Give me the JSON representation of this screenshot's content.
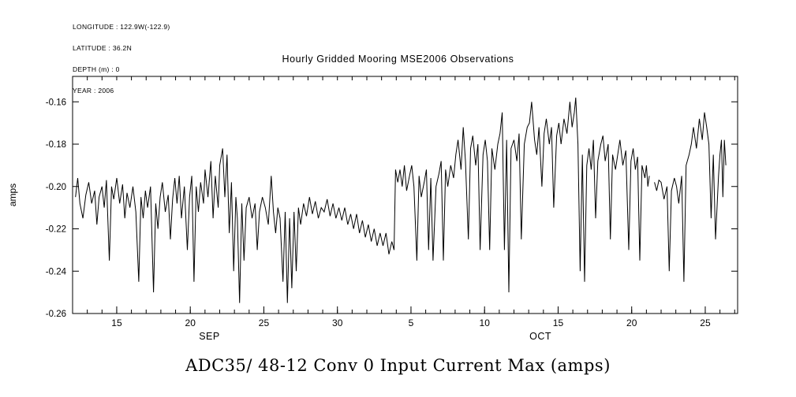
{
  "metadata": {
    "lines": [
      "LONGITUDE : 122.9W(-122.9)",
      "LATITUDE : 36.2N",
      "DEPTH (m) : 0",
      "YEAR : 2006"
    ]
  },
  "chart_data": {
    "type": "line",
    "title": "Hourly Gridded Mooring MSE2006 Observations",
    "bottom_title": "ADC35/ 48-12 Conv 0 Input Current Max (amps)",
    "ylabel": "amps",
    "line_color": "#000000",
    "grid": false,
    "legend": "none",
    "xlim": [
      12,
      57.2
    ],
    "ylim": [
      -0.26,
      -0.148
    ],
    "y_ticks": [
      {
        "value": -0.16,
        "label": "-0.16"
      },
      {
        "value": -0.18,
        "label": "-0.18"
      },
      {
        "value": -0.2,
        "label": "-0.20"
      },
      {
        "value": -0.22,
        "label": "-0.22"
      },
      {
        "value": -0.24,
        "label": "-0.24"
      },
      {
        "value": -0.26,
        "label": "-0.26"
      }
    ],
    "x_major_ticks": [
      {
        "value": 15,
        "label": "15"
      },
      {
        "value": 20,
        "label": "20"
      },
      {
        "value": 25,
        "label": "25"
      },
      {
        "value": 30,
        "label": "30"
      },
      {
        "value": 35,
        "label": "5"
      },
      {
        "value": 40,
        "label": "10"
      },
      {
        "value": 45,
        "label": "15"
      },
      {
        "value": 50,
        "label": "20"
      },
      {
        "value": 55,
        "label": "25"
      }
    ],
    "x_minor_step": 1,
    "month_labels": [
      {
        "value": 21.3,
        "label": "SEP"
      },
      {
        "value": 43.8,
        "label": "OCT"
      }
    ],
    "series": [
      {
        "name": "input_current_max_amps",
        "points": [
          [
            12.2,
            -0.205
          ],
          [
            12.35,
            -0.196
          ],
          [
            12.5,
            -0.208
          ],
          [
            12.7,
            -0.215
          ],
          [
            12.9,
            -0.204
          ],
          [
            13.1,
            -0.198
          ],
          [
            13.3,
            -0.208
          ],
          [
            13.5,
            -0.202
          ],
          [
            13.65,
            -0.218
          ],
          [
            13.8,
            -0.205
          ],
          [
            14.0,
            -0.2
          ],
          [
            14.15,
            -0.21
          ],
          [
            14.3,
            -0.197
          ],
          [
            14.5,
            -0.235
          ],
          [
            14.65,
            -0.2
          ],
          [
            14.8,
            -0.206
          ],
          [
            15.0,
            -0.196
          ],
          [
            15.2,
            -0.208
          ],
          [
            15.4,
            -0.199
          ],
          [
            15.55,
            -0.215
          ],
          [
            15.7,
            -0.203
          ],
          [
            15.9,
            -0.21
          ],
          [
            16.1,
            -0.2
          ],
          [
            16.3,
            -0.212
          ],
          [
            16.5,
            -0.245
          ],
          [
            16.65,
            -0.205
          ],
          [
            16.8,
            -0.215
          ],
          [
            16.95,
            -0.202
          ],
          [
            17.1,
            -0.21
          ],
          [
            17.3,
            -0.2
          ],
          [
            17.5,
            -0.25
          ],
          [
            17.65,
            -0.208
          ],
          [
            17.8,
            -0.22
          ],
          [
            17.95,
            -0.205
          ],
          [
            18.1,
            -0.198
          ],
          [
            18.3,
            -0.212
          ],
          [
            18.5,
            -0.204
          ],
          [
            18.65,
            -0.225
          ],
          [
            18.8,
            -0.206
          ],
          [
            18.95,
            -0.196
          ],
          [
            19.1,
            -0.208
          ],
          [
            19.25,
            -0.195
          ],
          [
            19.4,
            -0.215
          ],
          [
            19.6,
            -0.2
          ],
          [
            19.8,
            -0.23
          ],
          [
            19.95,
            -0.205
          ],
          [
            20.1,
            -0.195
          ],
          [
            20.25,
            -0.245
          ],
          [
            20.4,
            -0.2
          ],
          [
            20.55,
            -0.212
          ],
          [
            20.7,
            -0.198
          ],
          [
            20.9,
            -0.208
          ],
          [
            21.0,
            -0.192
          ],
          [
            21.2,
            -0.205
          ],
          [
            21.4,
            -0.188
          ],
          [
            21.55,
            -0.215
          ],
          [
            21.7,
            -0.195
          ],
          [
            21.9,
            -0.21
          ],
          [
            22.0,
            -0.19
          ],
          [
            22.2,
            -0.182
          ],
          [
            22.35,
            -0.205
          ],
          [
            22.5,
            -0.185
          ],
          [
            22.65,
            -0.222
          ],
          [
            22.8,
            -0.198
          ],
          [
            22.95,
            -0.24
          ],
          [
            23.1,
            -0.205
          ],
          [
            23.2,
            -0.215
          ],
          [
            23.35,
            -0.255
          ],
          [
            23.5,
            -0.208
          ],
          [
            23.65,
            -0.235
          ],
          [
            23.8,
            -0.21
          ],
          [
            24.0,
            -0.205
          ],
          [
            24.2,
            -0.215
          ],
          [
            24.4,
            -0.208
          ],
          [
            24.55,
            -0.23
          ],
          [
            24.7,
            -0.212
          ],
          [
            24.9,
            -0.205
          ],
          [
            25.1,
            -0.21
          ],
          [
            25.3,
            -0.218
          ],
          [
            25.5,
            -0.195
          ],
          [
            25.65,
            -0.212
          ],
          [
            25.8,
            -0.222
          ],
          [
            25.95,
            -0.21
          ],
          [
            26.1,
            -0.215
          ],
          [
            26.3,
            -0.245
          ],
          [
            26.45,
            -0.212
          ],
          [
            26.6,
            -0.255
          ],
          [
            26.75,
            -0.215
          ],
          [
            26.9,
            -0.248
          ],
          [
            27.05,
            -0.212
          ],
          [
            27.2,
            -0.24
          ],
          [
            27.35,
            -0.21
          ],
          [
            27.5,
            -0.218
          ],
          [
            27.7,
            -0.208
          ],
          [
            27.9,
            -0.214
          ],
          [
            28.1,
            -0.205
          ],
          [
            28.3,
            -0.213
          ],
          [
            28.5,
            -0.207
          ],
          [
            28.7,
            -0.215
          ],
          [
            28.9,
            -0.21
          ],
          [
            29.1,
            -0.212
          ],
          [
            29.3,
            -0.206
          ],
          [
            29.5,
            -0.214
          ],
          [
            29.7,
            -0.208
          ],
          [
            29.9,
            -0.215
          ],
          [
            30.1,
            -0.21
          ],
          [
            30.3,
            -0.216
          ],
          [
            30.5,
            -0.21
          ],
          [
            30.7,
            -0.218
          ],
          [
            30.9,
            -0.213
          ],
          [
            31.1,
            -0.22
          ],
          [
            31.3,
            -0.213
          ],
          [
            31.5,
            -0.222
          ],
          [
            31.7,
            -0.216
          ],
          [
            31.9,
            -0.224
          ],
          [
            32.1,
            -0.218
          ],
          [
            32.3,
            -0.226
          ],
          [
            32.5,
            -0.22
          ],
          [
            32.7,
            -0.228
          ],
          [
            32.9,
            -0.222
          ],
          [
            33.1,
            -0.228
          ],
          [
            33.3,
            -0.222
          ],
          [
            33.5,
            -0.232
          ],
          [
            33.7,
            -0.226
          ],
          [
            33.85,
            -0.23
          ],
          [
            33.95,
            -0.192
          ],
          [
            34.1,
            -0.198
          ],
          [
            34.25,
            -0.192
          ],
          [
            34.4,
            -0.2
          ],
          [
            34.55,
            -0.19
          ],
          [
            34.7,
            -0.202
          ],
          [
            34.9,
            -0.195
          ],
          [
            35.05,
            -0.19
          ],
          [
            35.2,
            -0.2
          ],
          [
            35.4,
            -0.235
          ],
          [
            35.55,
            -0.195
          ],
          [
            35.7,
            -0.205
          ],
          [
            35.9,
            -0.198
          ],
          [
            36.05,
            -0.192
          ],
          [
            36.2,
            -0.23
          ],
          [
            36.35,
            -0.196
          ],
          [
            36.5,
            -0.235
          ],
          [
            36.7,
            -0.2
          ],
          [
            36.9,
            -0.194
          ],
          [
            37.05,
            -0.188
          ],
          [
            37.2,
            -0.235
          ],
          [
            37.35,
            -0.192
          ],
          [
            37.5,
            -0.2
          ],
          [
            37.7,
            -0.19
          ],
          [
            37.9,
            -0.196
          ],
          [
            38.05,
            -0.185
          ],
          [
            38.2,
            -0.178
          ],
          [
            38.4,
            -0.192
          ],
          [
            38.55,
            -0.172
          ],
          [
            38.7,
            -0.188
          ],
          [
            38.9,
            -0.225
          ],
          [
            39.05,
            -0.182
          ],
          [
            39.2,
            -0.176
          ],
          [
            39.4,
            -0.19
          ],
          [
            39.55,
            -0.18
          ],
          [
            39.7,
            -0.23
          ],
          [
            39.9,
            -0.185
          ],
          [
            40.05,
            -0.178
          ],
          [
            40.2,
            -0.188
          ],
          [
            40.35,
            -0.23
          ],
          [
            40.5,
            -0.182
          ],
          [
            40.7,
            -0.192
          ],
          [
            40.9,
            -0.18
          ],
          [
            41.05,
            -0.175
          ],
          [
            41.2,
            -0.165
          ],
          [
            41.35,
            -0.23
          ],
          [
            41.5,
            -0.178
          ],
          [
            41.65,
            -0.25
          ],
          [
            41.8,
            -0.182
          ],
          [
            42.0,
            -0.178
          ],
          [
            42.2,
            -0.188
          ],
          [
            42.35,
            -0.175
          ],
          [
            42.5,
            -0.225
          ],
          [
            42.7,
            -0.18
          ],
          [
            42.9,
            -0.172
          ],
          [
            43.05,
            -0.17
          ],
          [
            43.2,
            -0.16
          ],
          [
            43.4,
            -0.178
          ],
          [
            43.55,
            -0.185
          ],
          [
            43.7,
            -0.172
          ],
          [
            43.9,
            -0.2
          ],
          [
            44.05,
            -0.175
          ],
          [
            44.2,
            -0.168
          ],
          [
            44.4,
            -0.18
          ],
          [
            44.55,
            -0.172
          ],
          [
            44.7,
            -0.21
          ],
          [
            44.9,
            -0.176
          ],
          [
            45.05,
            -0.17
          ],
          [
            45.2,
            -0.18
          ],
          [
            45.4,
            -0.168
          ],
          [
            45.6,
            -0.175
          ],
          [
            45.8,
            -0.16
          ],
          [
            45.95,
            -0.172
          ],
          [
            46.1,
            -0.165
          ],
          [
            46.2,
            -0.158
          ],
          [
            46.35,
            -0.18
          ],
          [
            46.5,
            -0.24
          ],
          [
            46.65,
            -0.185
          ],
          [
            46.8,
            -0.245
          ],
          [
            46.95,
            -0.19
          ],
          [
            47.1,
            -0.182
          ],
          [
            47.25,
            -0.192
          ],
          [
            47.4,
            -0.178
          ],
          [
            47.55,
            -0.215
          ],
          [
            47.7,
            -0.188
          ],
          [
            47.9,
            -0.18
          ],
          [
            48.05,
            -0.176
          ],
          [
            48.2,
            -0.188
          ],
          [
            48.4,
            -0.18
          ],
          [
            48.55,
            -0.225
          ],
          [
            48.7,
            -0.185
          ],
          [
            48.9,
            -0.192
          ],
          [
            49.05,
            -0.185
          ],
          [
            49.2,
            -0.178
          ],
          [
            49.4,
            -0.19
          ],
          [
            49.6,
            -0.183
          ],
          [
            49.8,
            -0.23
          ],
          [
            49.95,
            -0.188
          ],
          [
            50.1,
            -0.182
          ],
          [
            50.25,
            -0.192
          ],
          [
            50.4,
            -0.186
          ],
          [
            50.55,
            -0.235
          ],
          [
            50.7,
            -0.19
          ],
          [
            50.9,
            -0.196
          ],
          [
            51.0,
            -0.19
          ],
          [
            51.1,
            -0.2
          ],
          [
            51.2,
            -0.195
          ],
          [
            51.35,
            null
          ],
          [
            51.55,
            -0.198
          ],
          [
            51.7,
            -0.202
          ],
          [
            51.85,
            -0.197
          ],
          [
            52.0,
            -0.198
          ],
          [
            52.2,
            -0.206
          ],
          [
            52.4,
            -0.2
          ],
          [
            52.55,
            -0.24
          ],
          [
            52.7,
            -0.202
          ],
          [
            52.9,
            -0.196
          ],
          [
            53.05,
            -0.2
          ],
          [
            53.2,
            -0.208
          ],
          [
            53.4,
            -0.195
          ],
          [
            53.55,
            -0.245
          ],
          [
            53.7,
            -0.19
          ],
          [
            53.9,
            -0.185
          ],
          [
            54.05,
            -0.18
          ],
          [
            54.2,
            -0.172
          ],
          [
            54.4,
            -0.182
          ],
          [
            54.6,
            -0.168
          ],
          [
            54.8,
            -0.178
          ],
          [
            54.95,
            -0.165
          ],
          [
            55.1,
            -0.172
          ],
          [
            55.25,
            -0.18
          ],
          [
            55.4,
            -0.215
          ],
          [
            55.55,
            -0.185
          ],
          [
            55.7,
            -0.225
          ],
          [
            55.9,
            -0.195
          ],
          [
            56.0,
            -0.185
          ],
          [
            56.1,
            -0.178
          ],
          [
            56.2,
            -0.205
          ],
          [
            56.3,
            -0.178
          ],
          [
            56.4,
            -0.19
          ]
        ]
      }
    ]
  }
}
